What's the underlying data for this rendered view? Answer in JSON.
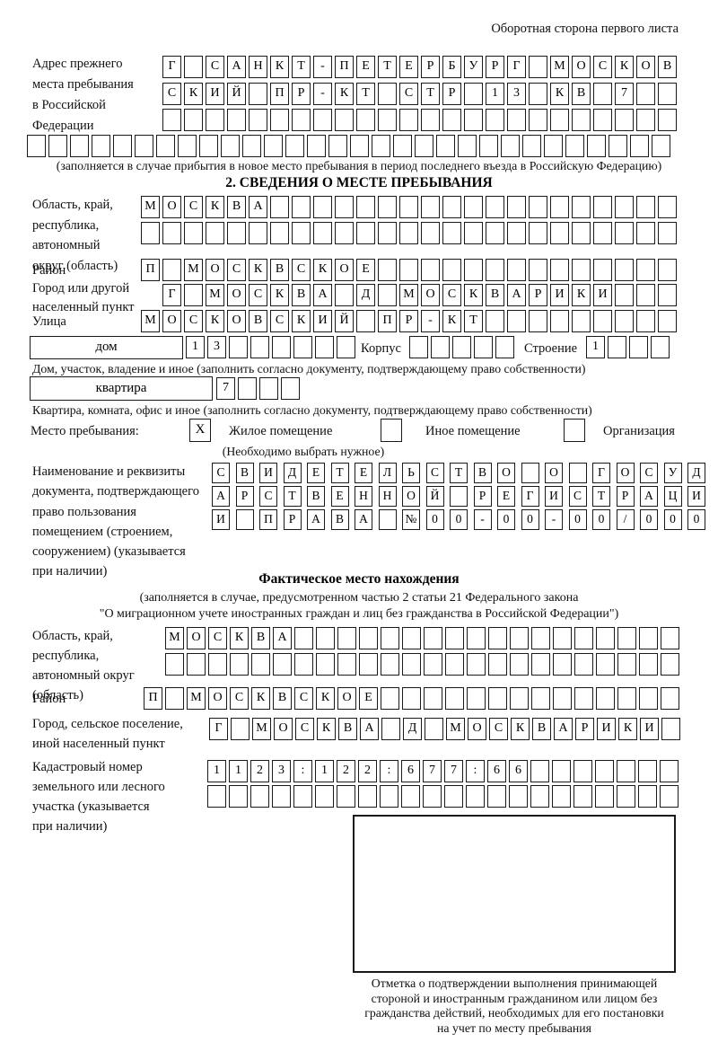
{
  "header": {
    "note": "Оборотная сторона первого листа"
  },
  "prev_address": {
    "label": "Адрес прежнего\nместа пребывания\nв Российской\nФедерации",
    "rows": [
      {
        "chars": "Г САНКТ-ПЕТЕРБУРГ МОСКОВ",
        "count": 24
      },
      {
        "chars": "СКИЙ ПР-КТ СТР 13 КВ 7",
        "count": 24
      },
      {
        "chars": "",
        "count": 24
      },
      {
        "chars": "",
        "count": 30
      }
    ],
    "note": "(заполняется в случае прибытия в новое место пребывания в период последнего въезда в Российскую Федерацию)"
  },
  "section2": {
    "title": "2. СВЕДЕНИЯ О МЕСТЕ ПРЕБЫВАНИЯ",
    "region_label": "Область, край,\nреспублика,\nавтономный\nокруг (область)",
    "region_rows": [
      {
        "chars": "МОСКВА",
        "count": 25
      },
      {
        "chars": "",
        "count": 25
      }
    ],
    "district_label": "Район",
    "district_row": {
      "chars": "П МОСКВСКОЕ",
      "count": 25
    },
    "city_label": "Город или другой\nнаселенный пункт",
    "city_row": {
      "chars": "Г МОСКВА Д МОСКВАРИКИ",
      "count": 24
    },
    "street_label": "Улица",
    "street_row": {
      "chars": "МОСКОВСКИЙ ПР-КТ",
      "count": 25
    },
    "house_label": "дом",
    "house_row": {
      "chars": "13",
      "count": 8
    },
    "korpus_label": "Корпус",
    "korpus_row": {
      "chars": "",
      "count": 5
    },
    "stroenie_label": "Строение",
    "stroenie_row": {
      "chars": "1",
      "count": 4
    },
    "house_note": "Дом, участок, владение и иное (заполнить согласно документу, подтверждающему право собственности)",
    "apartment_label": "квартира",
    "apartment_row": {
      "chars": "7",
      "count": 4
    },
    "apartment_note": "Квартира, комната, офис и иное (заполнить согласно документу, подтверждающему право собственности)",
    "stay": {
      "label": "Место пребывания:",
      "options": [
        {
          "label": "Жилое помещение",
          "mark": "X"
        },
        {
          "label": "Иное помещение",
          "mark": ""
        },
        {
          "label": "Организация",
          "mark": ""
        }
      ],
      "note": "(Необходимо выбрать нужное)"
    },
    "doc_label": "Наименование и реквизиты\nдокумента, подтверждающего\nправо пользования\nпомещением (строением,\nсооружением) (указывается\nпри наличии)",
    "doc_rows": [
      {
        "chars": "СВИДЕТЕЛЬСТВО О ГОСУД",
        "count": 21
      },
      {
        "chars": "АРСТВЕННОЙ РЕГИСТРАЦИ",
        "count": 21
      },
      {
        "chars": "И ПРАВА №00-00-00/000",
        "count": 21
      }
    ]
  },
  "actual_location": {
    "title": "Фактическое место нахождения",
    "subtitle": "(заполняется в случае, предусмотренном частью 2 статьи 21 Федерального закона\n\"О миграционном учете иностранных граждан и лиц без гражданства в Российской Федерации\")",
    "region_label": "Область, край,\nреспублика,\nавтономный округ\n(область)",
    "region_rows": [
      {
        "chars": "МОСКВА",
        "count": 24
      },
      {
        "chars": "",
        "count": 24
      }
    ],
    "district_label": "Район",
    "district_row": {
      "chars": "П МОСКВСКОЕ",
      "count": 25
    },
    "city_label": "Город, сельское поселение,\nиной населенный пункт",
    "city_row": {
      "chars": "Г МОСКВА Д МОСКВАРИКИ",
      "count": 22
    },
    "cadastre_label": "Кадастровый номер\nземельного или лесного\nучастка (указывается\nпри наличии)",
    "cadastre_rows": [
      {
        "chars": "1123:122:677:66",
        "count": 22
      },
      {
        "chars": "",
        "count": 22
      }
    ],
    "stamp_note": "Отметка о подтверждении выполнения принимающей\nстороной и иностранным гражданином или лицом без\nгражданства действий, необходимых для его постановки\nна учет по месту пребывания"
  }
}
